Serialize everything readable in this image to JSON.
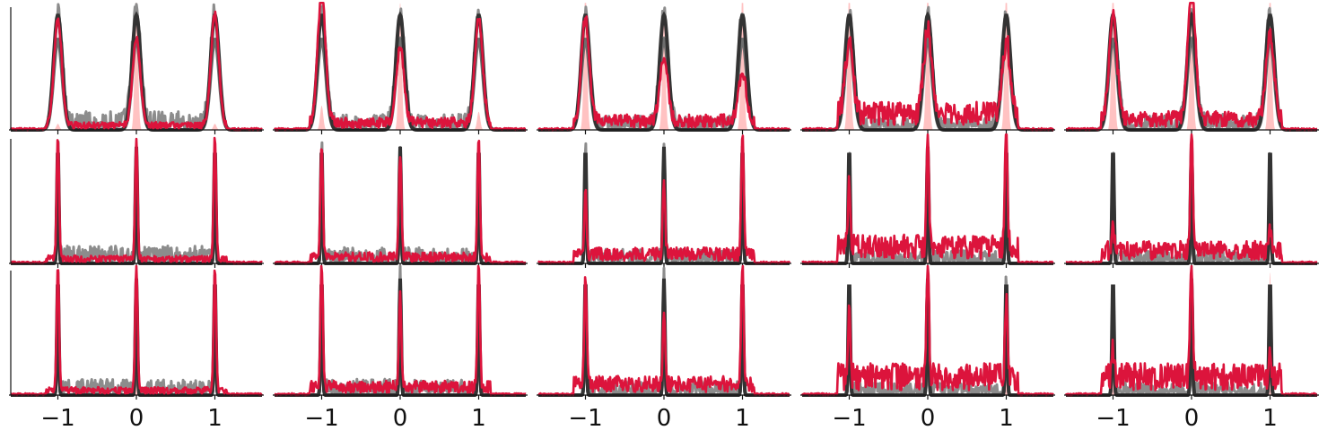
{
  "figure": {
    "rows": 3,
    "cols": 5,
    "colors": {
      "background": "#ffffff",
      "axis": "#111111",
      "gaussian_dark": "#333333",
      "gaussian_gray": "#6e6e6e",
      "noise_gray": "#8c8c8c",
      "pink_fill": "#ffb3b3",
      "crimson": "#dc143c"
    }
  },
  "chart_data": {
    "type": "line",
    "description_kind": "density",
    "x_range": [
      -1.6,
      1.6
    ],
    "x_ticks": [
      {
        "value": -1,
        "label": "−1"
      },
      {
        "value": 0,
        "label": "0"
      },
      {
        "value": 1,
        "label": "1"
      }
    ],
    "peaks": [
      -1,
      0,
      1
    ],
    "rows": [
      {
        "peak_width": 0.055,
        "y_max": 1.0
      },
      {
        "peak_width": 0.012,
        "y_max": 1.0
      },
      {
        "peak_width": 0.012,
        "y_max": 1.0
      }
    ],
    "panels": [
      {
        "row": 0,
        "col": 0,
        "crimson_peaks": [
          0.88,
          0.72,
          0.92
        ],
        "noise_gray": 0.12,
        "noise_red": 0.05,
        "pink_peaks": [
          0.05,
          1.2,
          0.05
        ]
      },
      {
        "row": 0,
        "col": 1,
        "crimson_peaks": [
          1.1,
          0.62,
          0.88
        ],
        "noise_gray": 0.1,
        "noise_red": 0.08,
        "pink_peaks": [
          0.2,
          1.05,
          0.15
        ]
      },
      {
        "row": 0,
        "col": 2,
        "crimson_peaks": [
          0.85,
          0.55,
          0.4
        ],
        "noise_gray": 0.09,
        "noise_red": 0.1,
        "pink_peaks": [
          1.2,
          0.9,
          1.2
        ]
      },
      {
        "row": 0,
        "col": 3,
        "crimson_peaks": [
          0.6,
          0.7,
          0.6
        ],
        "noise_gray": 0.08,
        "noise_red": 0.18,
        "pink_peaks": [
          1.2,
          1.2,
          1.2
        ]
      },
      {
        "row": 0,
        "col": 4,
        "crimson_peaks": [
          0.85,
          1.1,
          0.7
        ],
        "noise_gray": 0.1,
        "noise_red": 0.12,
        "pink_peaks": [
          1.2,
          1.2,
          1.2
        ]
      },
      {
        "row": 1,
        "col": 0,
        "crimson_peaks": [
          1.0,
          1.0,
          1.0
        ],
        "noise_gray": 0.11,
        "noise_red": 0.05,
        "pink_peaks": [
          0.0,
          0.0,
          0.0
        ]
      },
      {
        "row": 1,
        "col": 1,
        "crimson_peaks": [
          0.9,
          0.85,
          1.0
        ],
        "noise_gray": 0.1,
        "noise_red": 0.07,
        "pink_peaks": [
          0.0,
          0.0,
          0.0
        ]
      },
      {
        "row": 1,
        "col": 2,
        "crimson_peaks": [
          0.5,
          0.55,
          1.0
        ],
        "noise_gray": 0.09,
        "noise_red": 0.1,
        "pink_peaks": [
          0.0,
          0.0,
          0.0
        ]
      },
      {
        "row": 1,
        "col": 3,
        "crimson_peaks": [
          0.55,
          1.0,
          1.0
        ],
        "noise_gray": 0.08,
        "noise_red": 0.18,
        "pink_peaks": [
          0.0,
          1.0,
          0.0
        ]
      },
      {
        "row": 1,
        "col": 4,
        "crimson_peaks": [
          0.2,
          1.0,
          0.2
        ],
        "noise_gray": 0.08,
        "noise_red": 0.14,
        "pink_peaks": [
          0.0,
          0.0,
          0.0
        ]
      },
      {
        "row": 2,
        "col": 0,
        "crimson_peaks": [
          1.0,
          1.0,
          1.0
        ],
        "noise_gray": 0.1,
        "noise_red": 0.05,
        "pink_peaks": [
          0.0,
          0.4,
          0.0
        ]
      },
      {
        "row": 2,
        "col": 1,
        "crimson_peaks": [
          1.0,
          0.75,
          1.0
        ],
        "noise_gray": 0.1,
        "noise_red": 0.09,
        "pink_peaks": [
          0.0,
          0.0,
          0.0
        ]
      },
      {
        "row": 2,
        "col": 2,
        "crimson_peaks": [
          0.85,
          0.55,
          1.0
        ],
        "noise_gray": 0.09,
        "noise_red": 0.12,
        "pink_peaks": [
          0.0,
          0.0,
          0.0
        ]
      },
      {
        "row": 2,
        "col": 3,
        "crimson_peaks": [
          0.5,
          1.0,
          0.6
        ],
        "noise_gray": 0.08,
        "noise_red": 0.2,
        "pink_peaks": [
          0.0,
          0.0,
          0.8
        ]
      },
      {
        "row": 2,
        "col": 4,
        "crimson_peaks": [
          0.2,
          1.0,
          0.25
        ],
        "noise_gray": 0.08,
        "noise_red": 0.2,
        "pink_peaks": [
          0.6,
          0.0,
          1.0
        ]
      }
    ]
  }
}
